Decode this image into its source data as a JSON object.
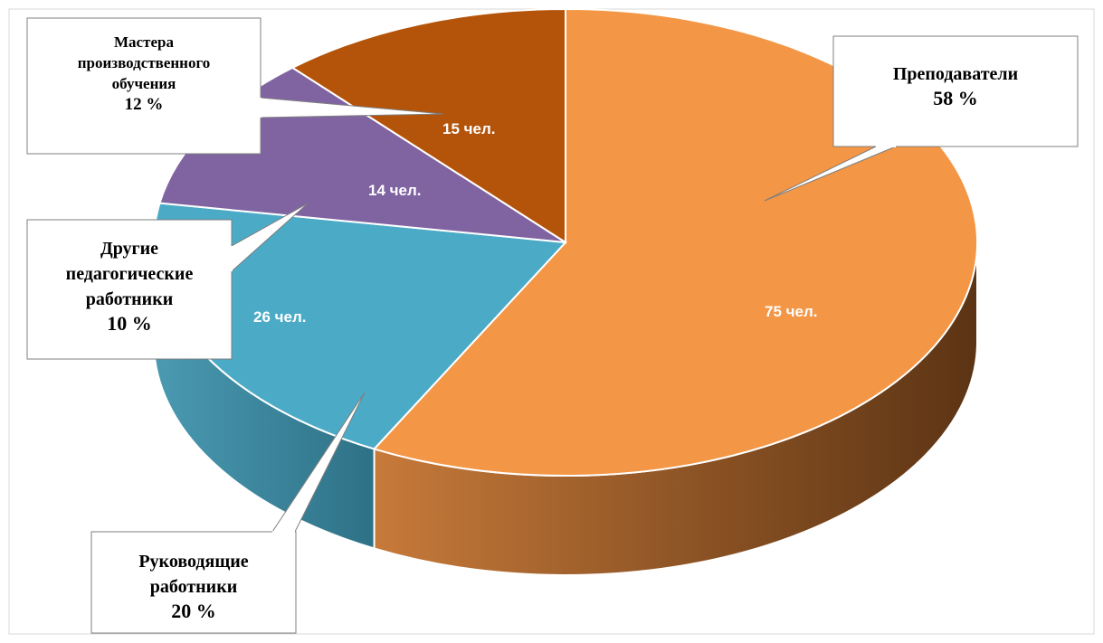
{
  "chart_data": {
    "type": "pie",
    "style": "3d-pie",
    "title": "",
    "slices": [
      {
        "category": "Преподаватели",
        "count": 75,
        "count_label": "75 чел.",
        "percent": 58,
        "percent_label": "58 %",
        "callout_lines": [
          "Преподаватели"
        ],
        "color": "#F39646",
        "side_color": "#9C5A25"
      },
      {
        "category": "Руководящие работники",
        "count": 26,
        "count_label": "26  чел.",
        "percent": 20,
        "percent_label": "20 %",
        "callout_lines": [
          "Руководящие",
          "работники"
        ],
        "color": "#4BAAC6",
        "side_color": "#3B8498"
      },
      {
        "category": "Другие педагогические работники",
        "count": 14,
        "count_label": "14 чел.",
        "percent": 10,
        "percent_label": "10 %",
        "callout_lines": [
          "Другие",
          "педагогические",
          "работники"
        ],
        "color": "#8064A2",
        "side_color": "#5E4A78"
      },
      {
        "category": "Мастера производственного обучения",
        "count": 15,
        "count_label": "15 чел.",
        "percent": 12,
        "percent_label": "12 %",
        "callout_lines": [
          "Мастера",
          "производственного",
          "обучения"
        ],
        "color": "#B4540A",
        "side_color": "#7E3C08"
      }
    ]
  }
}
